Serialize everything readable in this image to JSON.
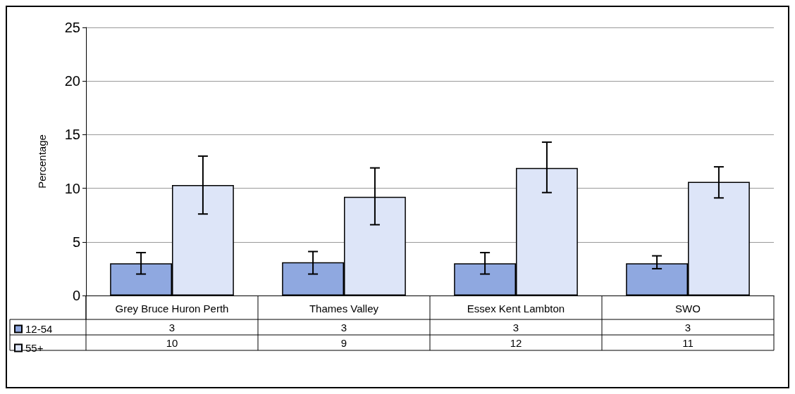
{
  "chart_data": {
    "type": "bar",
    "ylabel": "Percentage",
    "categories": [
      "Grey Bruce Huron Perth",
      "Thames Valley",
      "Essex Kent Lambton",
      "SWO"
    ],
    "series": [
      {
        "name": "12-54",
        "color": "#8fa8e0",
        "values": [
          3.0,
          3.1,
          3.0,
          3.0
        ],
        "errors": [
          [
            2.0,
            4.0
          ],
          [
            2.0,
            4.1
          ],
          [
            2.0,
            4.0
          ],
          [
            2.5,
            3.7
          ]
        ],
        "value_labels": [
          "3",
          "3",
          "3",
          "3"
        ]
      },
      {
        "name": "55+",
        "color": "#dde5f8",
        "values": [
          10.3,
          9.2,
          11.9,
          10.6
        ],
        "errors": [
          [
            7.6,
            13.0
          ],
          [
            6.6,
            11.9
          ],
          [
            9.6,
            14.3
          ],
          [
            9.1,
            12.0
          ]
        ],
        "value_labels": [
          "10",
          "9",
          "12",
          "11"
        ]
      }
    ],
    "ylim": [
      0,
      25
    ],
    "yticks": [
      0,
      5,
      10,
      15,
      20,
      25
    ],
    "grid": "y",
    "legend": "bottom left"
  }
}
